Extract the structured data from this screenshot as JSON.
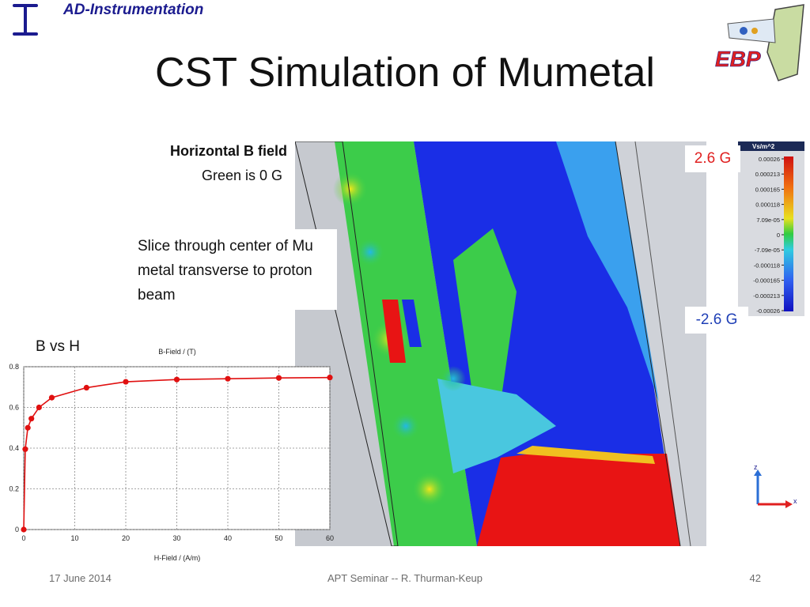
{
  "header": {
    "org_name": "AD-Instrumentation",
    "logo_text": "EBP"
  },
  "title": "CST Simulation of Mumetal",
  "labels": {
    "horizontal_b": "Horizontal B field",
    "green_zero": "Green is 0 G",
    "slice_text": "Slice through center of Mu metal transverse to proton beam",
    "max_value": "2.6 G",
    "min_value": "-2.6 G"
  },
  "legend": {
    "unit": "Vs/m^2",
    "ticks": [
      "0.00026",
      "0.000213",
      "0.000165",
      "0.000118",
      "7.09e-05",
      "0",
      "-7.09e-05",
      "-0.000118",
      "-0.000165",
      "-0.000213",
      "-0.00026"
    ]
  },
  "axis_widget": {
    "vertical": "z",
    "horizontal": "x"
  },
  "chart_data": {
    "type": "line",
    "label": "B vs H",
    "title": "B-Field / (T)",
    "xlabel": "H-Field / (A/m)",
    "xlim": [
      0,
      60
    ],
    "ylim": [
      0,
      0.8
    ],
    "xticks": [
      "0",
      "10",
      "20",
      "30",
      "40",
      "50",
      "60"
    ],
    "yticks": [
      "0",
      "0.2",
      "0.4",
      "0.6",
      "0.8"
    ],
    "grid": true,
    "series": [
      {
        "x": [
          0,
          0.3,
          0.8,
          1.5,
          3,
          5.5,
          12.3,
          20,
          30,
          40,
          50,
          60
        ],
        "y": [
          0,
          0.395,
          0.5,
          0.545,
          0.6,
          0.648,
          0.697,
          0.726,
          0.737,
          0.741,
          0.745,
          0.747
        ]
      }
    ],
    "colors": {
      "line": "#e01010"
    }
  },
  "footer": {
    "date": "17 June 2014",
    "center": "APT Seminar -- R. Thurman-Keup",
    "page": "42"
  },
  "colors": {
    "org": "#1b1b8f",
    "max": "#e02020",
    "min": "#1f3fb6"
  }
}
